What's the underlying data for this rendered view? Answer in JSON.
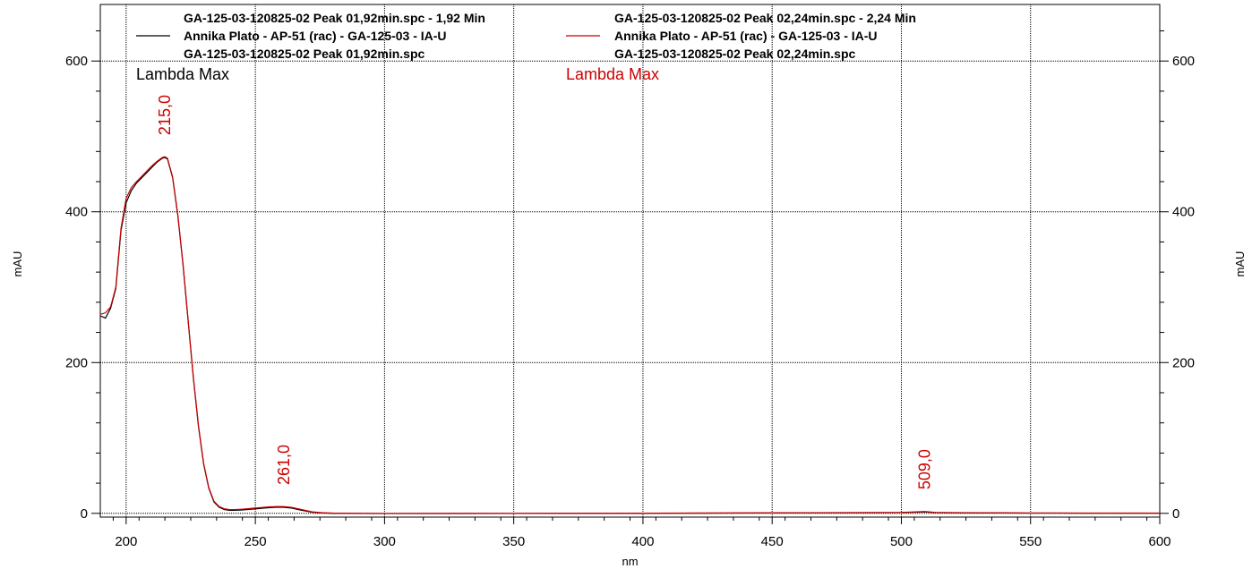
{
  "colors": {
    "series1": "#000000",
    "series2": "#cc0000",
    "grid": "#000000"
  },
  "legend": [
    {
      "lines": [
        "GA-125-03-120825-02 Peak 01,92min.spc - 1,92 Min",
        "Annika Plato - AP-51 (rac) - GA-125-03 - IA-U",
        "GA-125-03-120825-02 Peak 01,92min.spc"
      ]
    },
    {
      "lines": [
        "GA-125-03-120825-02 Peak 02,24min.spc - 2,24 Min",
        "Annika Plato - AP-51 (rac) - GA-125-03 - IA-U",
        "GA-125-03-120825-02 Peak 02,24min.spc"
      ]
    }
  ],
  "lambda_max_labels": [
    "Lambda Max",
    "Lambda Max"
  ],
  "chart_data": {
    "type": "line",
    "xlabel": "nm",
    "ylabel": "mAU",
    "ylabel_right": "mAU",
    "xlim": [
      190,
      600
    ],
    "ylim": [
      -5,
      675
    ],
    "x_ticks": [
      200,
      250,
      300,
      350,
      400,
      450,
      500,
      550,
      600
    ],
    "y_ticks": [
      0,
      200,
      400,
      600
    ],
    "grid": true,
    "legend_position": "top",
    "peak_labels": [
      {
        "x": 215,
        "y": 472,
        "text": "215,0"
      },
      {
        "x": 261,
        "y": 8,
        "text": "261,0"
      },
      {
        "x": 509,
        "y": 2,
        "text": "509,0"
      }
    ],
    "series": [
      {
        "name": "GA-125-03-120825-02 Peak 01,92min.spc - 1,92 Min",
        "x": [
          190,
          192,
          194,
          196,
          198,
          200,
          202,
          204,
          206,
          208,
          210,
          212,
          214,
          215,
          216,
          218,
          220,
          222,
          224,
          226,
          228,
          230,
          232,
          234,
          236,
          238,
          240,
          242,
          245,
          250,
          255,
          258,
          261,
          264,
          268,
          272,
          276,
          280,
          300,
          350,
          400,
          450,
          480,
          500,
          505,
          509,
          513,
          520,
          530,
          540,
          550,
          560,
          570,
          580,
          590,
          600
        ],
        "y": [
          262,
          259,
          272,
          298,
          375,
          412,
          428,
          438,
          445,
          452,
          459,
          466,
          471,
          472,
          470,
          445,
          395,
          330,
          255,
          180,
          115,
          65,
          33,
          15,
          8,
          5,
          4,
          4,
          4.5,
          6,
          7.5,
          8,
          8,
          7,
          4,
          1.5,
          0.5,
          0,
          -0.3,
          -0.2,
          0,
          0.5,
          0.8,
          1,
          1.5,
          2,
          1,
          0.8,
          0.5,
          0.5,
          0.3,
          0.3,
          0.2,
          0.2,
          0.2,
          0.2
        ]
      },
      {
        "name": "GA-125-03-120825-02 Peak 02,24min.spc - 2,24 Min",
        "x": [
          190,
          192,
          194,
          196,
          198,
          200,
          202,
          204,
          206,
          208,
          210,
          212,
          214,
          215,
          216,
          218,
          220,
          222,
          224,
          226,
          228,
          230,
          232,
          234,
          236,
          238,
          240,
          242,
          245,
          250,
          255,
          258,
          261,
          264,
          268,
          272,
          276,
          280,
          300,
          350,
          400,
          450,
          480,
          500,
          505,
          509,
          513,
          520,
          530,
          540,
          550,
          560,
          570,
          580,
          590,
          600
        ],
        "y": [
          264,
          266,
          274,
          300,
          378,
          418,
          432,
          440,
          447,
          454,
          461,
          467,
          472,
          473,
          471,
          446,
          396,
          331,
          256,
          181,
          116,
          66,
          34,
          16,
          9,
          6,
          5,
          5,
          5.5,
          7,
          8.5,
          9,
          9,
          8,
          5,
          2,
          0.8,
          0.3,
          -0.2,
          -0.1,
          0.2,
          0.6,
          1,
          1.2,
          1.8,
          2.5,
          1.3,
          1,
          0.7,
          0.6,
          0.4,
          0.4,
          0.3,
          0.3,
          0.3,
          0.3
        ]
      }
    ]
  }
}
